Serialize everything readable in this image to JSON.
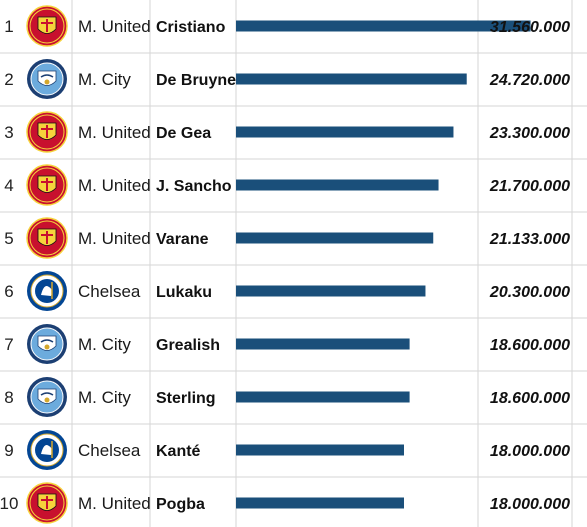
{
  "chart_data": {
    "type": "bar",
    "orientation": "horizontal",
    "xlim": [
      0,
      36000000
    ],
    "bar_color": "#1a4f7a",
    "grid_color": "#d6d6d6",
    "rows": [
      {
        "rank": "1",
        "club": "M. United",
        "crest": "manchester-united",
        "player": "Cristiano",
        "value": 31560000,
        "value_label": "31.560.000"
      },
      {
        "rank": "2",
        "club": "M. City",
        "crest": "manchester-city",
        "player": "De Bruyne",
        "value": 24720000,
        "value_label": "24.720.000"
      },
      {
        "rank": "3",
        "club": "M. United",
        "crest": "manchester-united",
        "player": "De Gea",
        "value": 23300000,
        "value_label": "23.300.000"
      },
      {
        "rank": "4",
        "club": "M. United",
        "crest": "manchester-united",
        "player": "J. Sancho",
        "value": 21700000,
        "value_label": "21.700.000"
      },
      {
        "rank": "5",
        "club": "M. United",
        "crest": "manchester-united",
        "player": "Varane",
        "value": 21133000,
        "value_label": "21.133.000"
      },
      {
        "rank": "6",
        "club": "Chelsea",
        "crest": "chelsea",
        "player": "Lukaku",
        "value": 20300000,
        "value_label": "20.300.000"
      },
      {
        "rank": "7",
        "club": "M. City",
        "crest": "manchester-city",
        "player": "Grealish",
        "value": 18600000,
        "value_label": "18.600.000"
      },
      {
        "rank": "8",
        "club": "M. City",
        "crest": "manchester-city",
        "player": "Sterling",
        "value": 18600000,
        "value_label": "18.600.000"
      },
      {
        "rank": "9",
        "club": "Chelsea",
        "crest": "chelsea",
        "player": "Kanté",
        "value": 18000000,
        "value_label": "18.000.000"
      },
      {
        "rank": "10",
        "club": "M. United",
        "crest": "manchester-united",
        "player": "Pogba",
        "value": 18000000,
        "value_label": "18.000.000"
      }
    ]
  },
  "crest_colors": {
    "manchester-united": {
      "outer": "#c8102e",
      "inner": "#f6d33c",
      "accent": "#111111"
    },
    "manchester-city": {
      "outer": "#1c3f73",
      "inner": "#6cabdd",
      "accent": "#ffffff"
    },
    "chelsea": {
      "outer": "#034694",
      "inner": "#ffffff",
      "accent": "#d4a72c"
    }
  }
}
